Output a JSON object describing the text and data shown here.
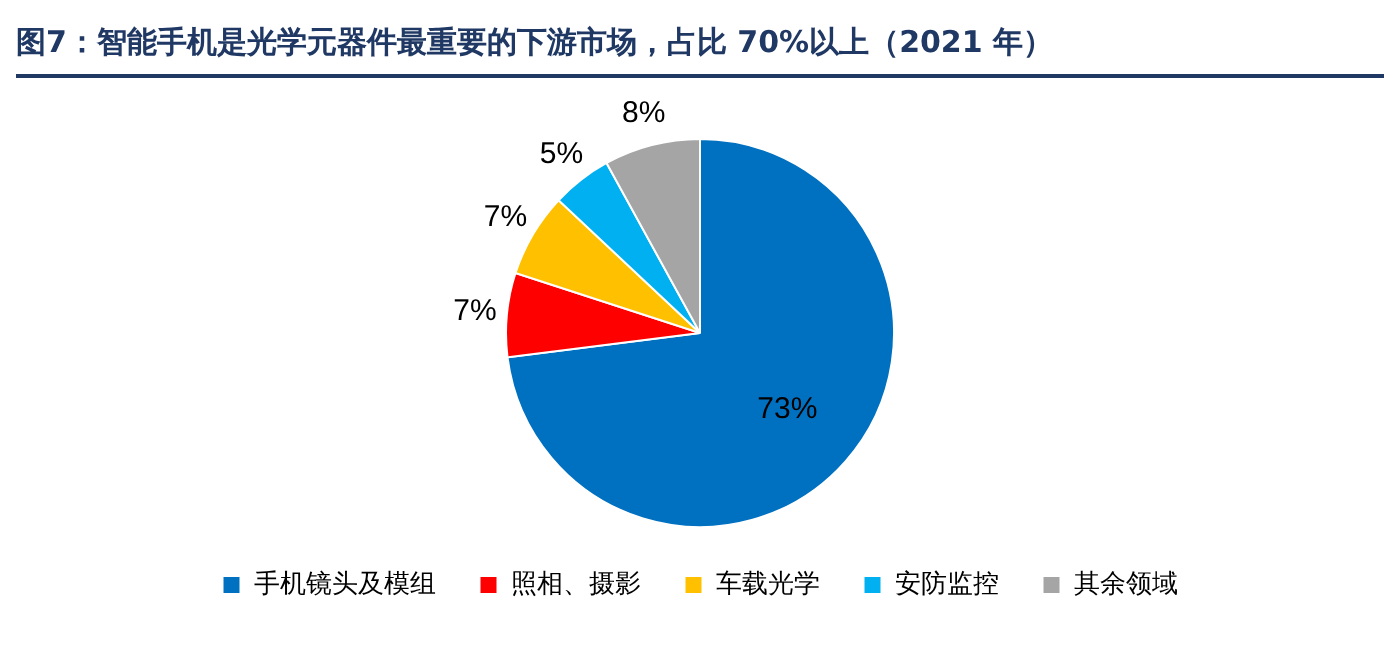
{
  "chart_data": {
    "type": "pie",
    "title": "图7：智能手机是光学元器件最重要的下游市场，占比 70%以上（2021 年）",
    "categories": [
      "手机镜头及模组",
      "照相、摄影",
      "车载光学",
      "安防监控",
      "其余领域"
    ],
    "values": [
      73,
      7,
      7,
      5,
      8
    ],
    "colors": [
      "#0070c0",
      "#ff0000",
      "#ffc000",
      "#00b0f0",
      "#a5a5a5"
    ],
    "value_labels": [
      "73%",
      "7%",
      "7%",
      "5%",
      "8%"
    ],
    "legend": "bottom"
  }
}
